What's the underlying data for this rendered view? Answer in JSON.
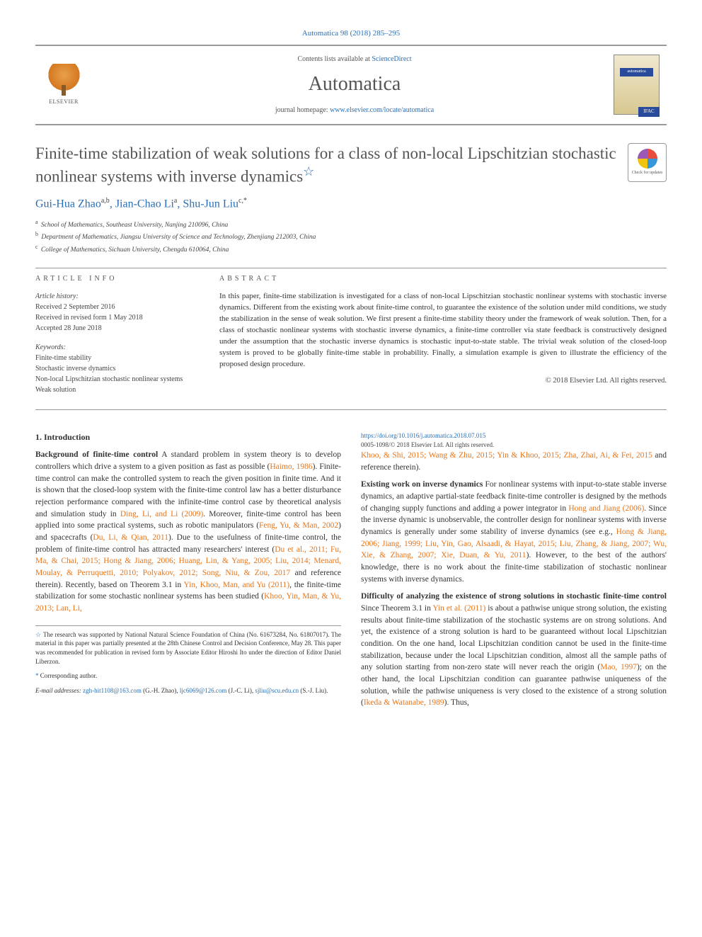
{
  "header": {
    "citation_line": "Automatica 98 (2018) 285–295",
    "contents_text": "Contents lists available at ",
    "contents_link": "ScienceDirect",
    "journal_name": "Automatica",
    "homepage_text": "journal homepage: ",
    "homepage_link": "www.elsevier.com/locate/automatica",
    "elsevier_label": "ELSEVIER",
    "cover_label": "automatica",
    "ifac_label": "IFAC",
    "check_updates": "Check for updates"
  },
  "title": "Finite-time stabilization of weak solutions for a class of non-local Lipschitzian stochastic nonlinear systems with inverse dynamics",
  "title_star": "☆",
  "authors_html": "Gui-Hua Zhao",
  "authors": [
    {
      "name": "Gui-Hua Zhao",
      "sup": "a,b"
    },
    {
      "name": "Jian-Chao Li",
      "sup": "a"
    },
    {
      "name": "Shu-Jun Liu",
      "sup": "c,*"
    }
  ],
  "affiliations": [
    {
      "sup": "a",
      "text": "School of Mathematics, Southeast University, Nanjing 210096, China"
    },
    {
      "sup": "b",
      "text": "Department of Mathematics, Jiangsu University of Science and Technology, Zhenjiang 212003, China"
    },
    {
      "sup": "c",
      "text": "College of Mathematics, Sichuan University, Chengdu 610064, China"
    }
  ],
  "info": {
    "section_label": "article info",
    "history_label": "Article history:",
    "history": [
      "Received 2 September 2016",
      "Received in revised form 1 May 2018",
      "Accepted 28 June 2018"
    ],
    "keywords_label": "Keywords:",
    "keywords": [
      "Finite-time stability",
      "Stochastic inverse dynamics",
      "Non-local Lipschitzian stochastic nonlinear systems",
      "Weak solution"
    ]
  },
  "abstract": {
    "section_label": "abstract",
    "text": "In this paper, finite-time stabilization is investigated for a class of non-local Lipschitzian stochastic nonlinear systems with stochastic inverse dynamics. Different from the existing work about finite-time control, to guarantee the existence of the solution under mild conditions, we study the stabilization in the sense of weak solution. We first present a finite-time stability theory under the framework of weak solution. Then, for a class of stochastic nonlinear systems with stochastic inverse dynamics, a finite-time controller via state feedback is constructively designed under the assumption that the stochastic inverse dynamics is stochastic input-to-state stable. The trivial weak solution of the closed-loop system is proved to be globally finite-time stable in probability. Finally, a simulation example is given to illustrate the efficiency of the proposed design procedure.",
    "copyright": "© 2018 Elsevier Ltd. All rights reserved."
  },
  "body": {
    "intro_heading": "1. Introduction",
    "p1_lead": "Background of finite-time control",
    "p1_text": " A standard problem in system theory is to develop controllers which drive a system to a given position as fast as possible (",
    "p1_cite1": "Haimo, 1986",
    "p1_text2": "). Finite-time control can make the controlled system to reach the given position in finite time. And it is shown that the closed-loop system with the finite-time control law has a better disturbance rejection performance compared with the infinite-time control case by theoretical analysis and simulation study in ",
    "p1_cite2": "Ding, Li, and Li (2009)",
    "p1_text3": ". Moreover, finite-time control has been applied into some practical systems, such as robotic manipulators (",
    "p1_cite3": "Feng, Yu, & Man, 2002",
    "p1_text4": ") and spacecrafts (",
    "p1_cite4": "Du, Li, & Qian, 2011",
    "p1_text5": "). Due to the usefulness of finite-time control, the problem of finite-time control has attracted many researchers' interest (",
    "p1_cite5": "Du et al., 2011; Fu, Ma, & Chai, 2015; Hong & Jiang, 2006; Huang, Lin, & Yang, 2005; Liu, 2014; Menard, Moulay, & Perruquetti, 2010; Polyakov, 2012; Song, Niu, & Zou, 2017",
    "p1_text6": " and reference therein). Recently, based on Theorem 3.1 in ",
    "p1_cite6": "Yin, Khoo, Man, and Yu (2011)",
    "p1_text7": ", the finite-time stabilization for some stochastic nonlinear systems has been studied (",
    "p1_cite7": "Khoo, Yin, Man, & Yu, 2013; Lan, Li,",
    "p1_cite7b": "Khoo, & Shi, 2015; Wang & Zhu, 2015; Yin & Khoo, 2015; Zha, Zhai, Ai, & Fei, 2015",
    "p1_text8": " and reference therein).",
    "p2_lead": "Existing work on inverse dynamics",
    "p2_text": " For nonlinear systems with input-to-state stable inverse dynamics, an adaptive partial-state feedback finite-time controller is designed by the methods of changing supply functions and adding a power integrator in ",
    "p2_cite1": "Hong and Jiang (2006)",
    "p2_text2": ". Since the inverse dynamic is unobservable, the controller design for nonlinear systems with inverse dynamics is generally under some stability of inverse dynamics (see e.g., ",
    "p2_cite2": "Hong & Jiang, 2006; Jiang, 1999; Liu, Yin, Gao, Alsaadi, & Hayat, 2015; Liu, Zhang, & Jiang, 2007; Wu, Xie, & Zhang, 2007; Xie, Duan, & Yu, 2011",
    "p2_text3": "). However, to the best of the authors' knowledge, there is no work about the finite-time stabilization of stochastic nonlinear systems with inverse dynamics.",
    "p3_lead": "Difficulty of analyzing the existence of strong solutions in stochastic finite-time control",
    "p3_text": " Since Theorem 3.1 in ",
    "p3_cite1": "Yin et al. (2011)",
    "p3_text2": " is about a pathwise unique strong solution, the existing results about finite-time stabilization of the stochastic systems are on strong solutions. And yet, the existence of a strong solution is hard to be guaranteed without local Lipschitzian condition. On the one hand, local Lipschitzian condition cannot be used in the finite-time stabilization, because under the local Lipschitzian condition, almost all the sample paths of any solution starting from non-zero state will never reach the origin (",
    "p3_cite2": "Mao, 1997",
    "p3_text3": "); on the other hand, the local Lipschitzian condition can guarantee pathwise uniqueness of the solution, while the pathwise uniqueness is very closed to the existence of a strong solution (",
    "p3_cite3": "Ikeda & Watanabe, 1989",
    "p3_text4": "). Thus,"
  },
  "footnotes": {
    "star_text": "The research was supported by National Natural Science Foundation of China (No. 61673284, No. 61807017). The material in this paper was partially presented at the 28th Chinese Control and Decision Conference, May 28. This paper was recommended for publication in revised form by Associate Editor Hiroshi Ito under the direction of Editor Daniel Liberzon.",
    "corresp_label": "Corresponding author.",
    "email_label": "E-mail addresses:",
    "emails": [
      {
        "addr": "zgh-hit1108@163.com",
        "who": "(G.-H. Zhao)"
      },
      {
        "addr": "ljc6069@126.com",
        "who": "(J.-C. Li)"
      },
      {
        "addr": "sjliu@scu.edu.cn",
        "who": "(S.-J. Liu)"
      }
    ]
  },
  "footer": {
    "doi": "https://doi.org/10.1016/j.automatica.2018.07.015",
    "issn_copyright": "0005-1098/© 2018 Elsevier Ltd. All rights reserved."
  },
  "colors": {
    "link_blue": "#2a6fb5",
    "cite_orange": "#e8751a",
    "text_grey": "#555555",
    "rule_grey": "#999999"
  }
}
